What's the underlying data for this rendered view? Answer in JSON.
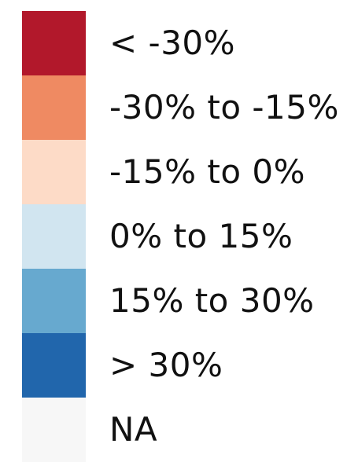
{
  "legend": {
    "items": [
      {
        "label": "< -30%",
        "color": "#b2182b"
      },
      {
        "label": "-30% to -15%",
        "color": "#ef8a62"
      },
      {
        "label": "-15% to 0%",
        "color": "#fddbc7"
      },
      {
        "label": "0% to 15%",
        "color": "#d1e5f0"
      },
      {
        "label": "15% to 30%",
        "color": "#67a9cf"
      },
      {
        "label": "> 30%",
        "color": "#2166ac"
      },
      {
        "label": "NA",
        "color": "#f7f7f7"
      }
    ]
  }
}
